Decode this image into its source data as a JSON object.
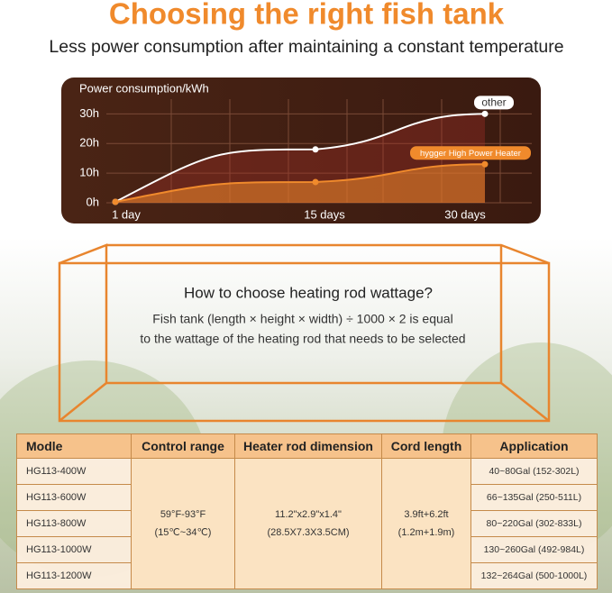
{
  "header": {
    "title": "Choosing the right fish tank",
    "subtitle": "Less power consumption after maintaining a constant temperature"
  },
  "chart_data": {
    "type": "line",
    "y_label": "Power consumption/kWh",
    "categories": [
      "1 day",
      "15 days",
      "30 days"
    ],
    "series": [
      {
        "name": "other",
        "color": "#ffffff",
        "values": [
          0.3,
          18,
          30
        ]
      },
      {
        "name": "hygger High Power Heater",
        "color": "#f08a2c",
        "values": [
          0.3,
          7,
          13
        ]
      }
    ],
    "ylim": [
      0,
      38
    ],
    "yticks": [
      {
        "value": 0,
        "label": "0h"
      },
      {
        "value": 10,
        "label": "10h"
      },
      {
        "value": 20,
        "label": "20h"
      },
      {
        "value": 30,
        "label": "30h"
      }
    ],
    "grid": true
  },
  "tank": {
    "title": "How to choose heating rod wattage?",
    "lines": [
      "Fish tank (length × height × width) ÷ 1000 × 2 is equal",
      "to the wattage of the heating rod that needs to be selected"
    ]
  },
  "table": {
    "header": [
      "Modle",
      "Control range",
      "Heater rod dimension",
      "Cord length",
      "Application"
    ],
    "models": [
      "HG113-400W",
      "HG113-600W",
      "HG113-800W",
      "HG113-1000W",
      "HG113-1200W"
    ],
    "control_range": [
      "59°F-93°F",
      "(15℃~34℃)"
    ],
    "dimension": [
      "11.2\"x2.9\"x1.4\"",
      "(28.5X7.3X3.5CM)"
    ],
    "cord": [
      "3.9ft+6.2ft",
      "(1.2m+1.9m)"
    ],
    "applications": [
      "40~80Gal (152-302L)",
      "66~135Gal (250-511L)",
      "80~220Gal (302-833L)",
      "130~260Gal (492-984L)",
      "132~264Gal (500-1000L)"
    ]
  }
}
